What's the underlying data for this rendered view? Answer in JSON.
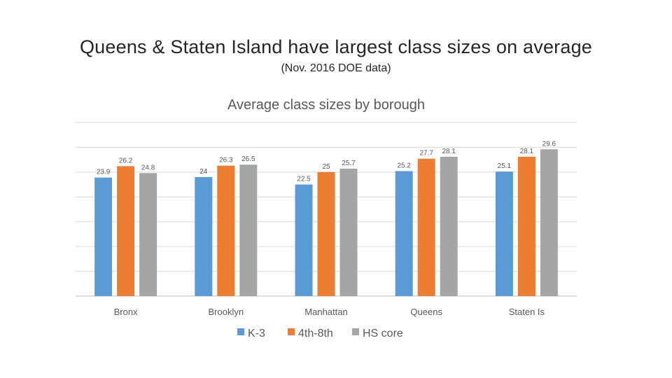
{
  "slide": {
    "title": "Queens & Staten Island have largest class sizes on average",
    "subtitle": "(Nov. 2016 DOE data)"
  },
  "chart_data": {
    "type": "bar",
    "title": "Average class sizes by borough",
    "categories": [
      "Bronx",
      "Brooklyn",
      "Manhattan",
      "Queens",
      "Staten Is"
    ],
    "series": [
      {
        "name": "K-3",
        "color": "#5b9bd5",
        "values": [
          23.9,
          24,
          22.5,
          25.2,
          25.1
        ]
      },
      {
        "name": "4th-8th",
        "color": "#ed7d31",
        "values": [
          26.2,
          26.3,
          25,
          27.7,
          28.1
        ]
      },
      {
        "name": "HS core",
        "color": "#a5a5a5",
        "values": [
          24.8,
          26.5,
          25.7,
          28.1,
          29.6
        ]
      }
    ],
    "value_labels": [
      [
        "23.9",
        "24",
        "22.5",
        "25.2",
        "25.1"
      ],
      [
        "26.2",
        "26.3",
        "25",
        "27.7",
        "28.1"
      ],
      [
        "24.8",
        "26.5",
        "25.7",
        "28.1",
        "29.6"
      ]
    ],
    "ylim": [
      0,
      35
    ],
    "gridlines": true,
    "y_tick_labels_shown": false,
    "legend_position": "bottom"
  }
}
